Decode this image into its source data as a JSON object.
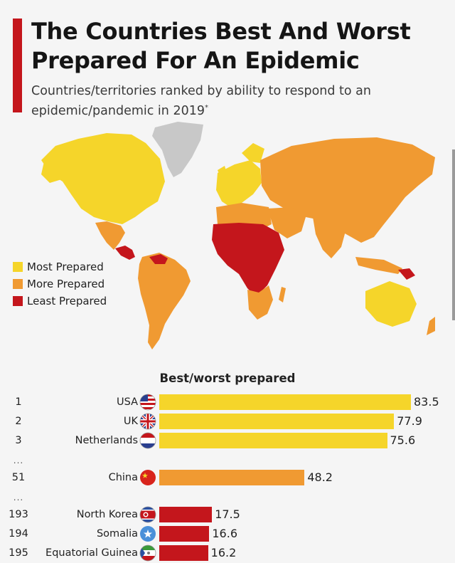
{
  "header": {
    "title": "The Countries Best And Worst Prepared For An Epidemic",
    "subtitle": "Countries/territories ranked by ability to respond to an epidemic/pandemic in 2019",
    "subtitle_mark": "*"
  },
  "colors": {
    "accent": "#c4161c",
    "most_prepared": "#f5d52a",
    "more_prepared": "#f09a32",
    "least_prepared": "#c4161c",
    "no_data": "#c8c8c8"
  },
  "legend": {
    "items": [
      {
        "label": "Most Prepared",
        "color": "#f5d52a"
      },
      {
        "label": "More Prepared",
        "color": "#f09a32"
      },
      {
        "label": "Least Prepared",
        "color": "#c4161c"
      }
    ]
  },
  "map": {
    "regions": [
      {
        "name": "North America",
        "category": "Most Prepared"
      },
      {
        "name": "Greenland",
        "category": "No data"
      },
      {
        "name": "Mexico",
        "category": "More Prepared"
      },
      {
        "name": "Central America",
        "category": "Least Prepared"
      },
      {
        "name": "South America",
        "category": "More Prepared"
      },
      {
        "name": "Western Europe",
        "category": "Most Prepared"
      },
      {
        "name": "Russia & Asia",
        "category": "More Prepared"
      },
      {
        "name": "Central Africa",
        "category": "Least Prepared"
      },
      {
        "name": "Southern Africa",
        "category": "More Prepared"
      },
      {
        "name": "Australia",
        "category": "Most Prepared"
      }
    ]
  },
  "chart_data": {
    "type": "bar",
    "orientation": "horizontal",
    "title": "Best/worst prepared",
    "xlim": [
      0,
      100
    ],
    "rows": [
      {
        "rank": "1",
        "country": "USA",
        "value": 83.5,
        "category": "Most Prepared",
        "flag": "us-flag"
      },
      {
        "rank": "2",
        "country": "UK",
        "value": 77.9,
        "category": "Most Prepared",
        "flag": "uk-flag"
      },
      {
        "rank": "3",
        "country": "Netherlands",
        "value": 75.6,
        "category": "Most Prepared",
        "flag": "nl-flag"
      },
      {
        "rank": "51",
        "country": "China",
        "value": 48.2,
        "category": "More Prepared",
        "flag": "cn-flag"
      },
      {
        "rank": "193",
        "country": "North Korea",
        "value": 17.5,
        "category": "Least Prepared",
        "flag": "kp-flag"
      },
      {
        "rank": "194",
        "country": "Somalia",
        "value": 16.6,
        "category": "Least Prepared",
        "flag": "so-flag"
      },
      {
        "rank": "195",
        "country": "Equatorial Guinea",
        "value": 16.2,
        "category": "Least Prepared",
        "flag": "gq-flag"
      }
    ],
    "gap_marker": "..."
  }
}
